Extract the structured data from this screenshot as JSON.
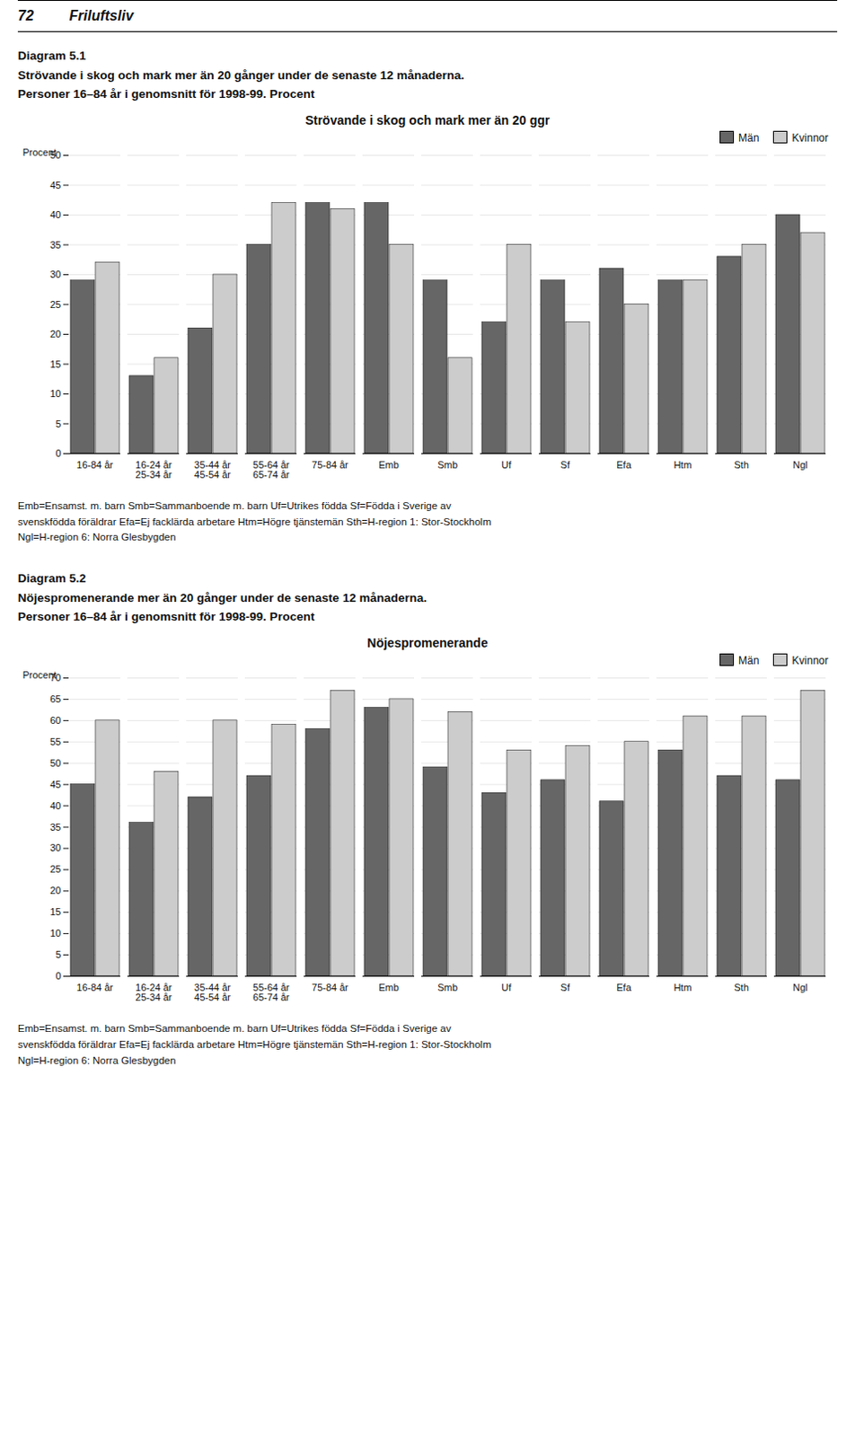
{
  "header": [
    "72",
    "Friluftsliv"
  ],
  "chart_data": [
    {
      "type": "bar",
      "title": "Strövande i skog och mark mer än 20 ggr",
      "subtitle": [
        "Diagram 5.1",
        "Strövande i skog och mark mer än 20 gånger under de senaste 12 månaderna.",
        "Personer 16–84 år i genomsnitt för 1998-99. Procent"
      ],
      "caption": [
        "Emb=Ensamst. m. barn  Smb=Sammanboende m. barn  Uf=Utrikes födda  Sf=Födda i Sverige av",
        "svenskfödda föräldrar  Efa=Ej facklärda arbetare  Htm=Högre tjänstemän  Sth=H-region 1: Stor-Stockholm",
        "Ngl=H-region 6: Norra Glesbygden"
      ],
      "ylabel": "Procent",
      "categories": [
        "16-84 år",
        "16-24 år\n25-34 år",
        "35-44 år\n45-54 år",
        "55-64 år\n65-74 år",
        "75-84 år",
        "Emb",
        "Smb",
        "Uf",
        "Sf",
        "Efa",
        "Htm",
        "Sth",
        "Ngl"
      ],
      "series": [
        {
          "name": "Män",
          "color": "#666666",
          "values": [
            29,
            13,
            21,
            35,
            42,
            42,
            29,
            22,
            29,
            31,
            29,
            33,
            40
          ]
        },
        {
          "name": "Kvinnor",
          "color": "#cccccc",
          "values": [
            32,
            16,
            30,
            42,
            41,
            35,
            16,
            35,
            22,
            25,
            29,
            35,
            37
          ]
        }
      ],
      "ylim": [
        0,
        50
      ],
      "yticks": [
        0,
        5,
        10,
        15,
        20,
        25,
        30,
        35,
        40,
        45,
        50
      ],
      "grid": true,
      "legend": "upper right"
    },
    {
      "type": "bar",
      "title": "Nöjespromenerande",
      "subtitle": [
        "Diagram 5.2",
        "Nöjespromenerande mer än 20 gånger under de senaste 12 månaderna.",
        "Personer 16–84 år i genomsnitt för 1998-99. Procent"
      ],
      "caption": [
        "Emb=Ensamst. m. barn  Smb=Sammanboende m. barn  Uf=Utrikes födda  Sf=Födda i Sverige av",
        "svenskfödda föräldrar  Efa=Ej facklärda arbetare  Htm=Högre tjänstemän  Sth=H-region 1: Stor-Stockholm",
        "Ngl=H-region 6: Norra Glesbygden"
      ],
      "ylabel": "Procent",
      "categories": [
        "16-84 år",
        "16-24 år\n25-34 år",
        "35-44 år\n45-54 år",
        "55-64 år\n65-74 år",
        "75-84 år",
        "Emb",
        "Smb",
        "Uf",
        "Sf",
        "Efa",
        "Htm",
        "Sth",
        "Ngl"
      ],
      "series": [
        {
          "name": "Män",
          "color": "#666666",
          "values": [
            45,
            36,
            42,
            47,
            58,
            63,
            49,
            43,
            46,
            41,
            53,
            47,
            46
          ]
        },
        {
          "name": "Kvinnor",
          "color": "#cccccc",
          "values": [
            60,
            48,
            60,
            59,
            67,
            65,
            62,
            53,
            54,
            55,
            61,
            61,
            67
          ]
        }
      ],
      "ylim": [
        0,
        70
      ],
      "yticks": [
        0,
        5,
        10,
        15,
        20,
        25,
        30,
        35,
        40,
        45,
        50,
        55,
        60,
        65,
        70
      ],
      "grid": true,
      "legend": "upper right"
    }
  ]
}
